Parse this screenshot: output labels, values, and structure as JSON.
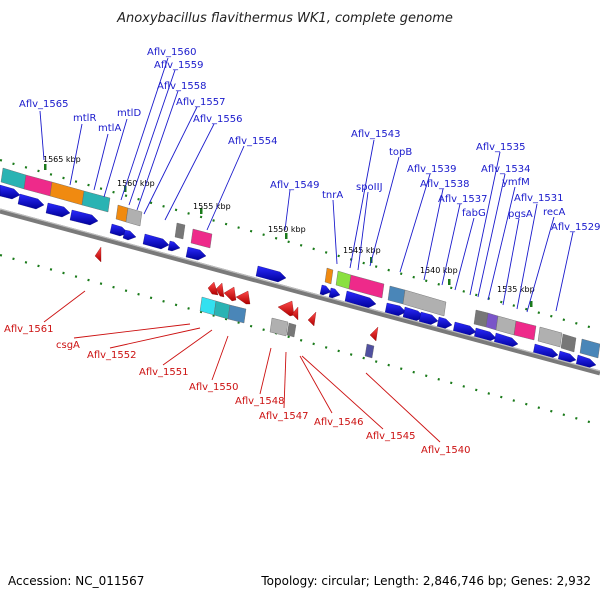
{
  "title": "Anoxybacillus flavithermus WK1, complete genome",
  "footer": {
    "accession": "Accession: NC_011567",
    "summary": "Topology: circular; Length: 2,846,746 bp; Genes: 2,932"
  },
  "ticks": [
    "1565 kbp",
    "1560 kbp",
    "1555 kbp",
    "1550 kbp",
    "1545 kbp",
    "1540 kbp",
    "1535 kbp"
  ],
  "forward_labels": [
    "Aflv_1565",
    "mtlR",
    "mtlA",
    "mtlD",
    "Aflv_1560",
    "Aflv_1559",
    "Aflv_1558",
    "Aflv_1557",
    "Aflv_1556",
    "Aflv_1554",
    "Aflv_1549",
    "tnrA",
    "spoIIJ",
    "Aflv_1543",
    "topB",
    "Aflv_1539",
    "Aflv_1538",
    "Aflv_1537",
    "fabG",
    "Aflv_1535",
    "Aflv_1534",
    "ymfM",
    "pgsA",
    "Aflv_1531",
    "recA",
    "Aflv_1529"
  ],
  "reverse_labels": [
    "Aflv_1561",
    "csgA",
    "Aflv_1552",
    "Aflv_1551",
    "Aflv_1550",
    "Aflv_1548",
    "Aflv_1547",
    "Aflv_1546",
    "Aflv_1545",
    "Aflv_1540"
  ],
  "colors": {
    "forward_gene": "#0000cc",
    "reverse_gene": "#ee1111",
    "forward_label": "#1a1acc",
    "reverse_label": "#cc1111",
    "backbone": "#7a7a7a",
    "dots": "#1a7a1a",
    "cog_cyan": "#2ab3b3",
    "cog_magenta": "#ee2a8a",
    "cog_orange": "#f08a10",
    "cog_grey": "#b0b0b0",
    "cog_steel": "#4a86b8"
  }
}
